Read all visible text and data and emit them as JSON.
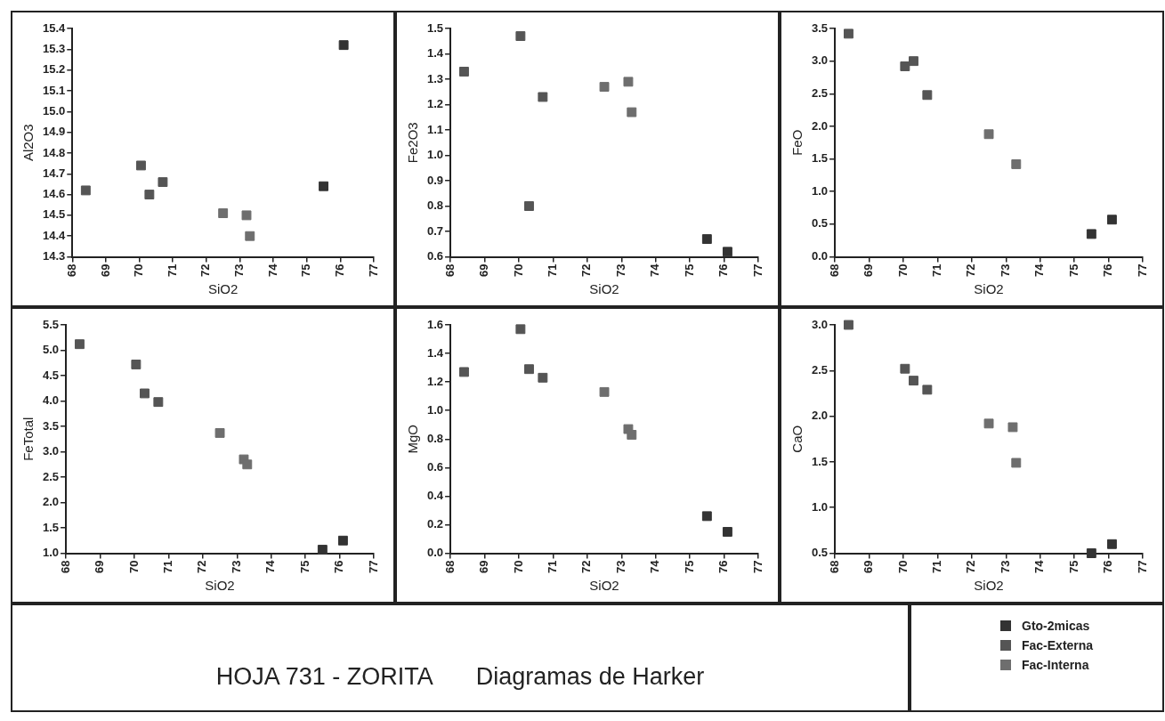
{
  "chart_data": [
    {
      "type": "scatter",
      "xlabel": "SiO2",
      "ylabel": "Al2O3",
      "marker": "square",
      "xlim": [
        68,
        77
      ],
      "xticks": [
        68,
        69,
        70,
        71,
        72,
        73,
        74,
        75,
        76,
        77
      ],
      "ylim": [
        14.3,
        15.4
      ],
      "yticks": [
        14.3,
        14.4,
        14.5,
        14.6,
        14.7,
        14.8,
        14.9,
        {
          "value": 15.0,
          "label": "15.0"
        },
        15.1,
        15.2,
        15.3,
        15.4
      ],
      "series": [
        {
          "color": "#333333",
          "x": [
            75.5,
            76.1
          ],
          "values": [
            14.64,
            15.32
          ]
        },
        {
          "color": "#555555",
          "x": [
            68.4,
            70.05,
            70.3,
            70.7
          ],
          "values": [
            14.62,
            14.74,
            14.6,
            14.66
          ]
        },
        {
          "color": "#6e6e6e",
          "x": [
            72.5,
            73.2,
            73.3
          ],
          "values": [
            14.51,
            14.5,
            14.4
          ]
        }
      ]
    },
    {
      "type": "scatter",
      "xlabel": "SiO2",
      "ylabel": "Fe2O3",
      "marker": "square",
      "xlim": [
        68,
        77
      ],
      "xticks": [
        68,
        69,
        70,
        71,
        72,
        73,
        74,
        75,
        76,
        77
      ],
      "ylim": [
        0.6,
        1.5
      ],
      "yticks": [
        0.6,
        0.7,
        0.8,
        0.9,
        {
          "value": 1.0,
          "label": "1.0"
        },
        1.1,
        1.2,
        1.3,
        1.4,
        1.5
      ],
      "series": [
        {
          "color": "#333333",
          "x": [
            75.5,
            76.1
          ],
          "values": [
            0.67,
            0.62
          ]
        },
        {
          "color": "#555555",
          "x": [
            68.4,
            70.05,
            70.3,
            70.7
          ],
          "values": [
            1.33,
            1.47,
            0.8,
            1.23
          ]
        },
        {
          "color": "#6e6e6e",
          "x": [
            72.5,
            73.2,
            73.3
          ],
          "values": [
            1.27,
            1.29,
            1.17
          ]
        }
      ]
    },
    {
      "type": "scatter",
      "xlabel": "SiO2",
      "ylabel": "FeO",
      "marker": "square",
      "xlim": [
        68,
        77
      ],
      "xticks": [
        68,
        69,
        70,
        71,
        72,
        73,
        74,
        75,
        76,
        77
      ],
      "ylim": [
        0,
        3.5
      ],
      "yticks": [
        {
          "value": 0,
          "label": "0.0"
        },
        0.5,
        {
          "value": 1,
          "label": "1.0"
        },
        1.5,
        {
          "value": 2,
          "label": "2.0"
        },
        2.5,
        {
          "value": 3,
          "label": "3.0"
        },
        3.5
      ],
      "series": [
        {
          "color": "#333333",
          "x": [
            75.5,
            76.1
          ],
          "values": [
            0.35,
            0.57
          ]
        },
        {
          "color": "#555555",
          "x": [
            68.4,
            70.05,
            70.3,
            70.7
          ],
          "values": [
            3.42,
            2.92,
            3.0,
            2.48
          ]
        },
        {
          "color": "#6e6e6e",
          "x": [
            72.5,
            73.2,
            73.3
          ],
          "values": [
            1.88,
            null,
            1.42
          ]
        }
      ]
    },
    {
      "type": "scatter",
      "xlabel": "SiO2",
      "ylabel": "FeTotal",
      "marker": "square",
      "xlim": [
        68,
        77
      ],
      "xticks": [
        68,
        69,
        70,
        71,
        72,
        73,
        74,
        75,
        76,
        77
      ],
      "ylim": [
        1,
        5.5
      ],
      "yticks": [
        {
          "value": 1,
          "label": "1.0"
        },
        1.5,
        {
          "value": 2,
          "label": "2.0"
        },
        2.5,
        {
          "value": 3,
          "label": "3.0"
        },
        3.5,
        {
          "value": 4,
          "label": "4.0"
        },
        4.5,
        {
          "value": 5,
          "label": "5.0"
        },
        5.5
      ],
      "series": [
        {
          "color": "#333333",
          "x": [
            75.5,
            76.1
          ],
          "values": [
            1.07,
            1.25
          ]
        },
        {
          "color": "#555555",
          "x": [
            68.4,
            70.05,
            70.3,
            70.7
          ],
          "values": [
            5.12,
            4.72,
            4.15,
            3.98
          ]
        },
        {
          "color": "#6e6e6e",
          "x": [
            72.5,
            73.2,
            73.3
          ],
          "values": [
            3.37,
            2.85,
            2.75
          ]
        }
      ]
    },
    {
      "type": "scatter",
      "xlabel": "SiO2",
      "ylabel": "MgO",
      "marker": "square",
      "xlim": [
        68,
        77
      ],
      "xticks": [
        68,
        69,
        70,
        71,
        72,
        73,
        74,
        75,
        76,
        77
      ],
      "ylim": [
        0,
        1.6
      ],
      "yticks": [
        {
          "value": 0,
          "label": "0.0"
        },
        0.2,
        0.4,
        0.6,
        0.8,
        {
          "value": 1,
          "label": "1.0"
        },
        1.2,
        1.4,
        1.6
      ],
      "series": [
        {
          "color": "#333333",
          "x": [
            75.5,
            76.1
          ],
          "values": [
            0.26,
            0.15
          ]
        },
        {
          "color": "#555555",
          "x": [
            68.4,
            70.05,
            70.3,
            70.7
          ],
          "values": [
            1.27,
            1.57,
            1.29,
            1.23
          ]
        },
        {
          "color": "#6e6e6e",
          "x": [
            72.5,
            73.2,
            73.3
          ],
          "values": [
            1.13,
            0.87,
            0.83
          ]
        }
      ]
    },
    {
      "type": "scatter",
      "xlabel": "SiO2",
      "ylabel": "CaO",
      "marker": "square",
      "legend": "bottom right",
      "xlim": [
        68,
        77
      ],
      "xticks": [
        68,
        69,
        70,
        71,
        72,
        73,
        74,
        75,
        76,
        77
      ],
      "ylim": [
        0.5,
        3
      ],
      "yticks": [
        0.5,
        {
          "value": 1,
          "label": "1.0"
        },
        1.5,
        {
          "value": 2,
          "label": "2.0"
        },
        2.5,
        {
          "value": 3,
          "label": "3.0"
        }
      ],
      "series": [
        {
          "name": "Gto-2micas",
          "color": "#333333",
          "x": [
            75.5,
            76.1
          ],
          "values": [
            0.5,
            0.6
          ]
        },
        {
          "name": "Fac-Externa",
          "color": "#555555",
          "x": [
            68.4,
            70.05,
            70.3,
            70.7
          ],
          "values": [
            3.0,
            2.52,
            2.39,
            2.29
          ]
        },
        {
          "name": "Fac-Interna",
          "color": "#6e6e6e",
          "x": [
            72.5,
            73.2,
            73.3
          ],
          "values": [
            1.92,
            1.88,
            1.49
          ]
        }
      ]
    },
    {
      "type": "other",
      "title": "HOJA 731 - ZORITA",
      "subtitle": "Diagramas de Harker"
    }
  ]
}
